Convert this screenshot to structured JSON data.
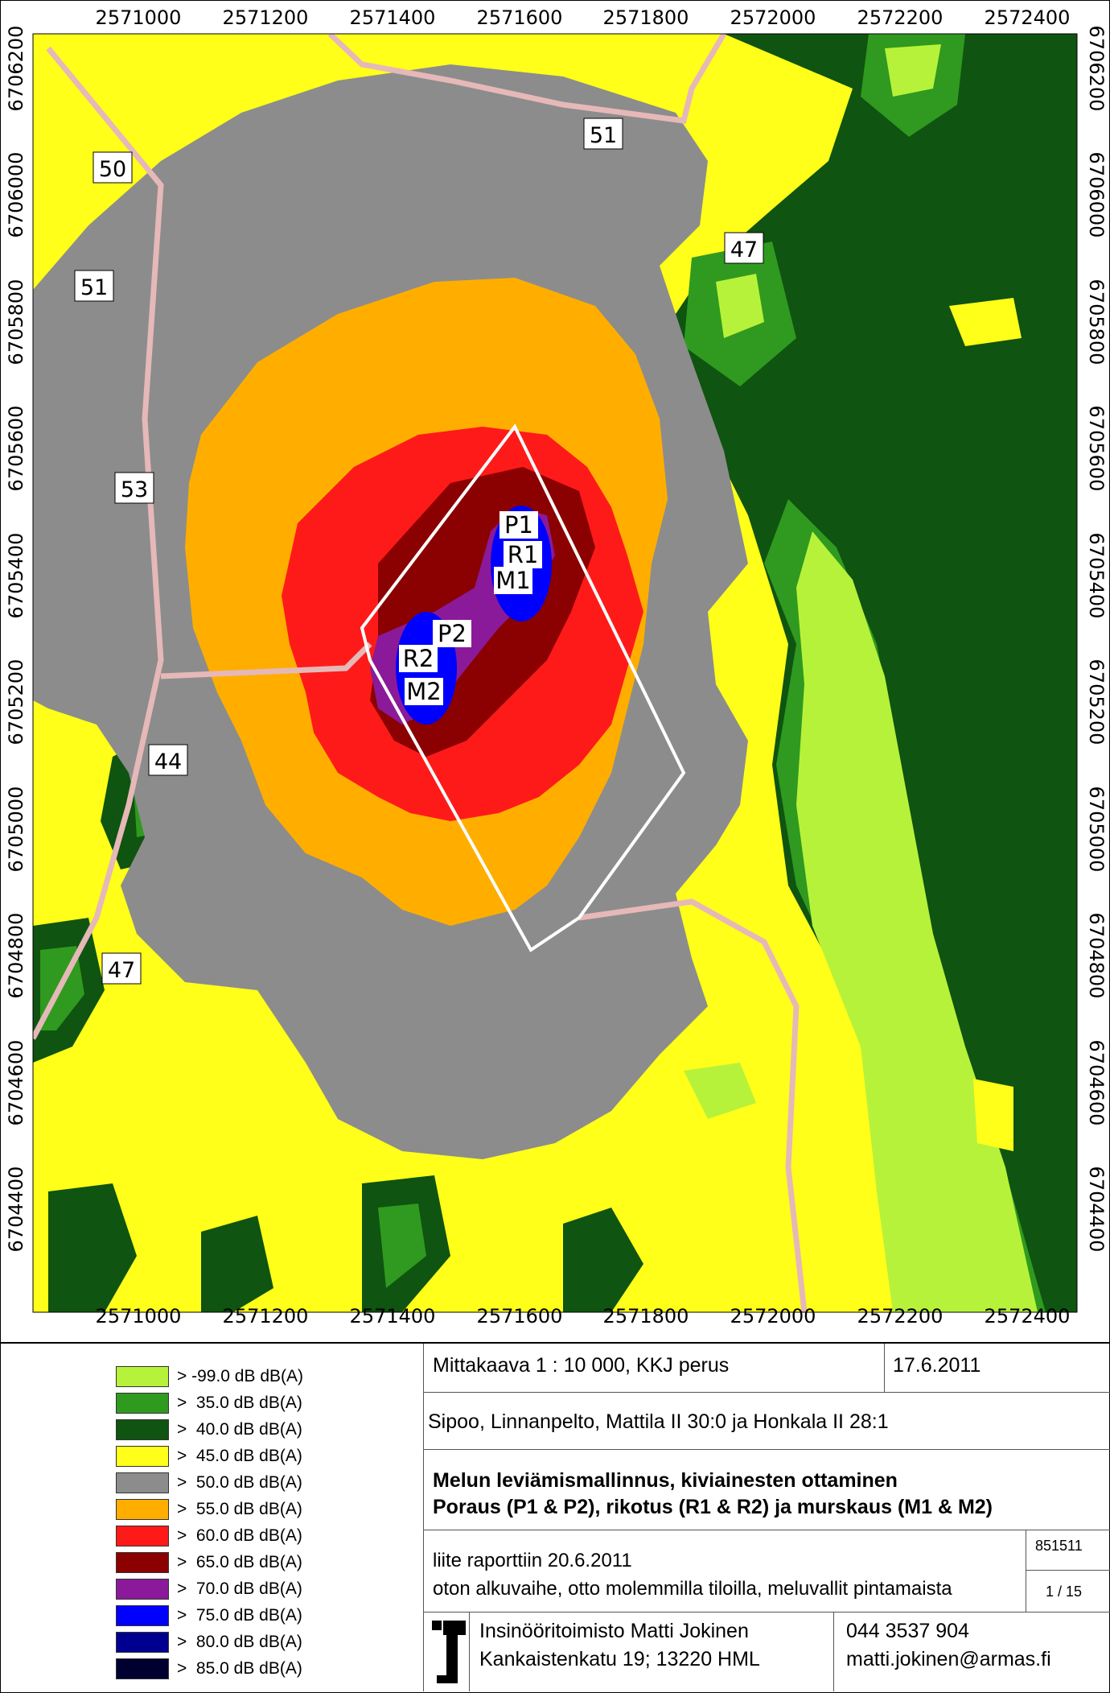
{
  "map": {
    "x_ticks": [
      "2571000",
      "2571200",
      "2571400",
      "2571600",
      "2571800",
      "2572000",
      "2572200",
      "2572400"
    ],
    "y_ticks": [
      "6706200",
      "6706000",
      "6705800",
      "6705600",
      "6705400",
      "6705200",
      "6705000",
      "6704800",
      "6704600",
      "6704400"
    ],
    "sources": [
      "P1",
      "R1",
      "M1",
      "P2",
      "R2",
      "M2"
    ],
    "callouts": [
      "50",
      "51",
      "51",
      "47",
      "53",
      "44",
      "47"
    ]
  },
  "legend": [
    {
      "label": "> -99.0 dB dB(A)",
      "color": "#b7f23a"
    },
    {
      "label": ">  35.0 dB dB(A)",
      "color": "#2f9a1f"
    },
    {
      "label": ">  40.0 dB dB(A)",
      "color": "#0f5410"
    },
    {
      "label": ">  45.0 dB dB(A)",
      "color": "#ffff1a"
    },
    {
      "label": ">  50.0 dB dB(A)",
      "color": "#8c8c8c"
    },
    {
      "label": ">  55.0 dB dB(A)",
      "color": "#ffae00"
    },
    {
      "label": ">  60.0 dB dB(A)",
      "color": "#ff1a1a"
    },
    {
      "label": ">  65.0 dB dB(A)",
      "color": "#8b0000"
    },
    {
      "label": ">  70.0 dB dB(A)",
      "color": "#8a1a9a"
    },
    {
      "label": ">  75.0 dB dB(A)",
      "color": "#0000ff"
    },
    {
      "label": ">  80.0 dB dB(A)",
      "color": "#000090"
    },
    {
      "label": ">  85.0 dB dB(A)",
      "color": "#000030"
    }
  ],
  "title_block": {
    "scale": "Mittakaava 1 : 10 000, KKJ perus",
    "date": "17.6.2011",
    "location": "Sipoo, Linnanpelto, Mattila II 30:0 ja Honkala II 28:1",
    "title_line1": "Melun leviämismallinnus, kiviainesten ottaminen",
    "title_line2": "Poraus (P1 & P2), rikotus (R1 & R2) ja murskaus (M1 & M2)",
    "report_line1": "liite raporttiin 20.6.2011",
    "report_line2": "oton alkuvaihe, otto molemmilla tiloilla, meluvallit pintamaista",
    "job_number": "851511",
    "page": "1 / 15",
    "company": "Insinööritoimisto Matti Jokinen",
    "address": "Kankaistenkatu 19; 13220 HML",
    "phone": "044 3537 904",
    "email": "matti.jokinen@armas.fi"
  }
}
